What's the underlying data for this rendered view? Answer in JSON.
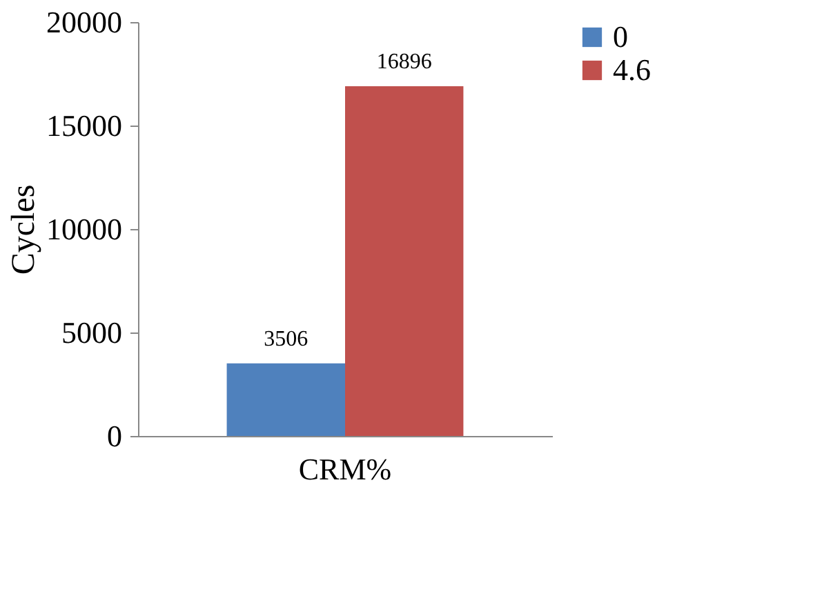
{
  "chart_data": {
    "type": "bar",
    "categories": [
      "CRM%"
    ],
    "ylabel": "Cycles",
    "ylim": [
      0,
      20000
    ],
    "yticks": [
      0,
      5000,
      10000,
      15000,
      20000
    ],
    "grid": false,
    "legend": "right",
    "data_labels": true,
    "series": [
      {
        "name": "0",
        "color": "#4f81bd",
        "values": [
          3506
        ]
      },
      {
        "name": "4.6",
        "color": "#c0504d",
        "values": [
          16896
        ]
      }
    ]
  }
}
